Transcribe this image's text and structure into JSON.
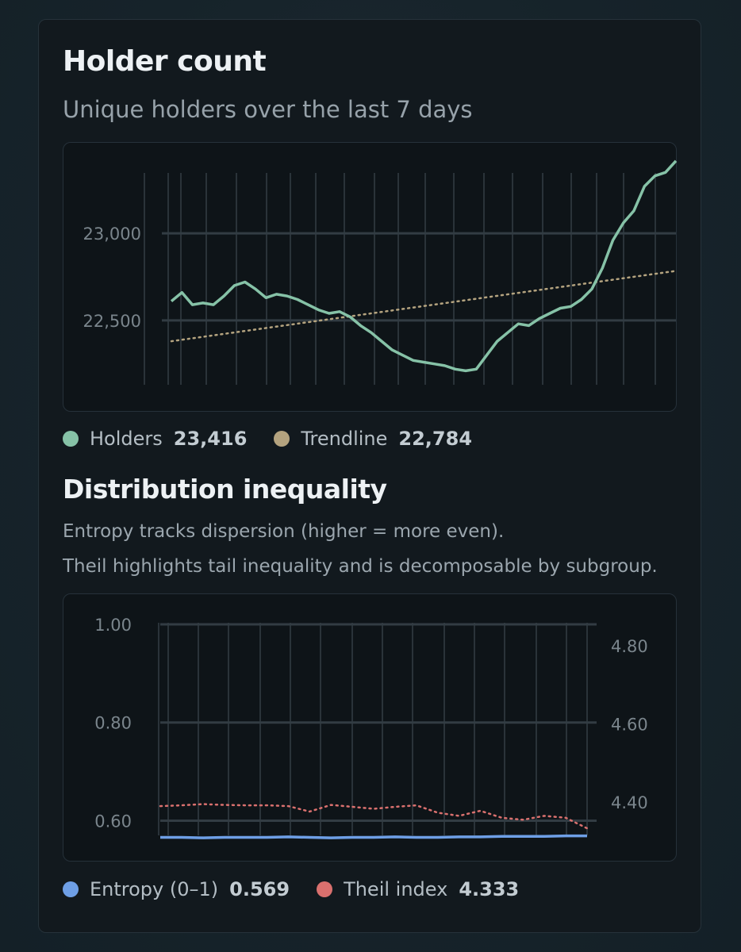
{
  "holder": {
    "title": "Holder count",
    "subtitle": "Unique holders over the last 7 days",
    "legend": [
      {
        "label": "Holders",
        "value": "23,416",
        "color": "#86c2a7"
      },
      {
        "label": "Trendline",
        "value": "22,784",
        "color": "#b4a37f"
      }
    ]
  },
  "inequality": {
    "title": "Distribution inequality",
    "desc1": "Entropy tracks dispersion (higher = more even).",
    "desc2": "Theil highlights tail inequality and is decomposable by subgroup.",
    "legend": [
      {
        "label": "Entropy (0–1)",
        "value": "0.569",
        "color": "#6e9fe6"
      },
      {
        "label": "Theil index",
        "value": "4.333",
        "color": "#d9706e"
      }
    ]
  },
  "chart_data": [
    {
      "type": "line",
      "y_ticks": [
        22500,
        23000
      ],
      "y_tick_labels": [
        "22,500",
        "23,000"
      ],
      "ylim": [
        22130,
        23520
      ],
      "grid": true,
      "series": [
        {
          "name": "Holders",
          "color": "#86c2a7",
          "style": "solid",
          "values": [
            22610,
            22660,
            22590,
            22600,
            22590,
            22640,
            22700,
            22720,
            22680,
            22630,
            22650,
            22640,
            22620,
            22590,
            22560,
            22540,
            22550,
            22520,
            22470,
            22430,
            22380,
            22330,
            22300,
            22270,
            22260,
            22250,
            22240,
            22220,
            22210,
            22220,
            22300,
            22380,
            22430,
            22480,
            22470,
            22510,
            22540,
            22570,
            22580,
            22620,
            22680,
            22800,
            22960,
            23060,
            23130,
            23270,
            23330,
            23350,
            23416
          ]
        },
        {
          "name": "Trendline",
          "color": "#b4a37f",
          "style": "dotted",
          "values": [
            22380,
            22784
          ]
        }
      ]
    },
    {
      "type": "line",
      "y_left_ticks": [
        0.6,
        0.8,
        1.0
      ],
      "y_left_tick_labels": [
        "0.60",
        "0.80",
        "1.00"
      ],
      "y_left_lim": [
        0.57,
        1.0
      ],
      "y_right_ticks": [
        4.4,
        4.6,
        4.8
      ],
      "y_right_tick_labels": [
        "4.40",
        "4.60",
        "4.80"
      ],
      "y_right_lim": [
        4.315,
        4.855
      ],
      "grid": true,
      "series": [
        {
          "name": "Entropy (0–1)",
          "axis": "left",
          "color": "#6e9fe6",
          "style": "solid",
          "values": [
            0.566,
            0.566,
            0.565,
            0.566,
            0.566,
            0.566,
            0.567,
            0.566,
            0.565,
            0.566,
            0.566,
            0.567,
            0.566,
            0.566,
            0.567,
            0.567,
            0.568,
            0.568,
            0.568,
            0.569,
            0.569
          ]
        },
        {
          "name": "Theil index",
          "axis": "left",
          "color": "#d9706e",
          "style": "dotted",
          "right_axis_values": [
            4.39,
            4.392,
            4.395,
            4.393,
            4.392,
            4.392,
            4.39,
            4.376,
            4.393,
            4.388,
            4.383,
            4.388,
            4.392,
            4.373,
            4.365,
            4.378,
            4.36,
            4.355,
            4.365,
            4.36,
            4.333
          ]
        }
      ]
    }
  ]
}
